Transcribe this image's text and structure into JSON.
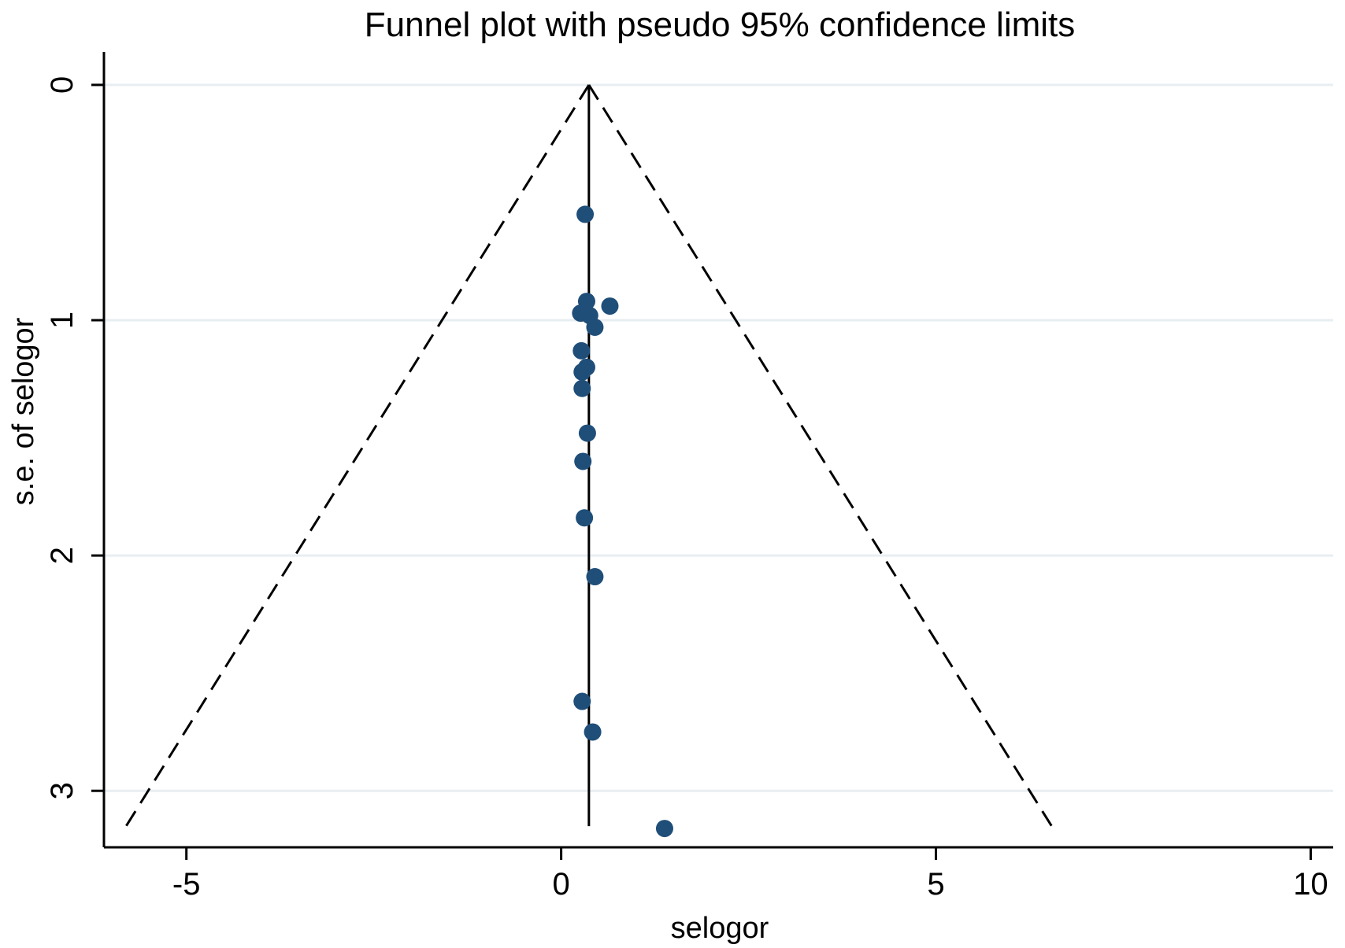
{
  "chart_data": {
    "type": "scatter",
    "title": "Funnel plot with pseudo 95% confidence limits",
    "xlabel": "selogor",
    "ylabel": "s.e. of selogor",
    "xlim": [
      -6.1,
      10.3
    ],
    "ylim": [
      3.24,
      -0.1
    ],
    "y_reversed": true,
    "x_ticks": [
      -5,
      0,
      5,
      10
    ],
    "x_tick_labels": [
      "-5",
      "0",
      "5",
      "10"
    ],
    "y_ticks": [
      0,
      1,
      2,
      3
    ],
    "y_tick_labels": [
      "0",
      "1",
      "2",
      "3"
    ],
    "grid": "horizontal",
    "legend": "none",
    "pooled_estimate": 0.37,
    "funnel": {
      "z": 1.96,
      "se_max": 3.15
    },
    "colors": {
      "points": "#1f4e79",
      "lines": "#000000",
      "grid": "#e8eef2"
    },
    "series": [
      {
        "points": [
          {
            "x": 0.32,
            "y": 0.55
          },
          {
            "x": 0.34,
            "y": 0.92
          },
          {
            "x": 0.65,
            "y": 0.94
          },
          {
            "x": 0.26,
            "y": 0.97
          },
          {
            "x": 0.38,
            "y": 0.98
          },
          {
            "x": 0.45,
            "y": 1.03
          },
          {
            "x": 0.27,
            "y": 1.13
          },
          {
            "x": 0.34,
            "y": 1.2
          },
          {
            "x": 0.28,
            "y": 1.22
          },
          {
            "x": 0.28,
            "y": 1.29
          },
          {
            "x": 0.35,
            "y": 1.48
          },
          {
            "x": 0.29,
            "y": 1.6
          },
          {
            "x": 0.31,
            "y": 1.84
          },
          {
            "x": 0.45,
            "y": 2.09
          },
          {
            "x": 0.28,
            "y": 2.62
          },
          {
            "x": 0.42,
            "y": 2.75
          },
          {
            "x": 1.38,
            "y": 3.16
          }
        ]
      }
    ]
  }
}
